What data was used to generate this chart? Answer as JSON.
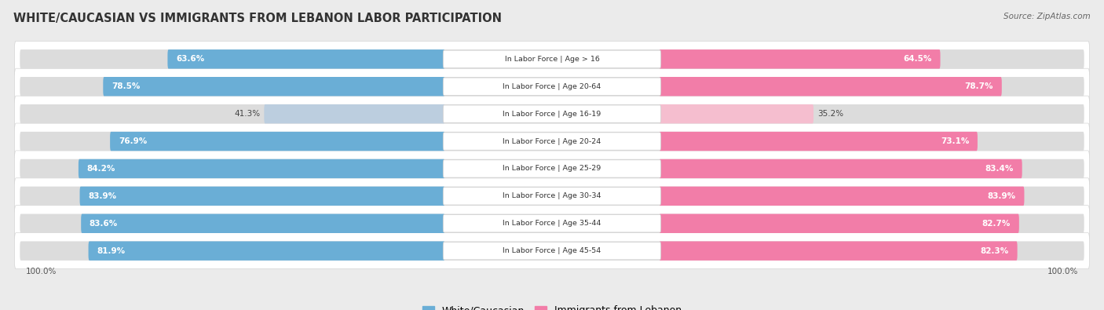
{
  "title": "White/Caucasian vs Immigrants from Lebanon Labor Participation",
  "source": "Source: ZipAtlas.com",
  "categories": [
    "In Labor Force | Age > 16",
    "In Labor Force | Age 20-64",
    "In Labor Force | Age 16-19",
    "In Labor Force | Age 20-24",
    "In Labor Force | Age 25-29",
    "In Labor Force | Age 30-34",
    "In Labor Force | Age 35-44",
    "In Labor Force | Age 45-54"
  ],
  "white_values": [
    63.6,
    78.5,
    41.3,
    76.9,
    84.2,
    83.9,
    83.6,
    81.9
  ],
  "immigrant_values": [
    64.5,
    78.7,
    35.2,
    73.1,
    83.4,
    83.9,
    82.7,
    82.3
  ],
  "white_color_strong": "#6AAED6",
  "white_color_light": "#BCCEDF",
  "immigrant_color_strong": "#F27DA8",
  "immigrant_color_light": "#F5BECF",
  "background_color": "#EBEBEB",
  "row_bg": "#E8E8E8",
  "bar_bg": "#DCDCDC",
  "legend_white": "White/Caucasian",
  "legend_immigrant": "Immigrants from Lebanon",
  "max_value": 100.0
}
